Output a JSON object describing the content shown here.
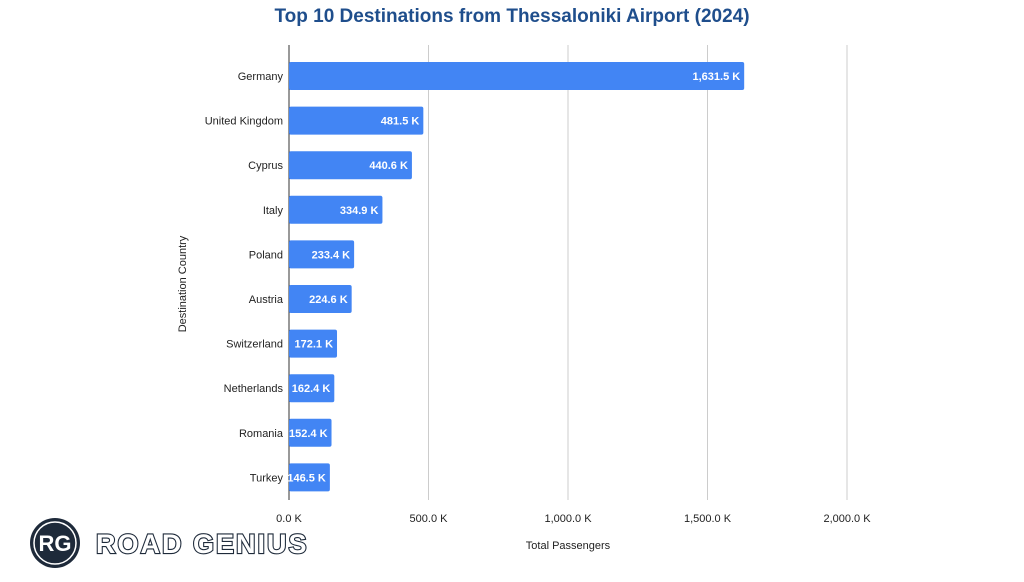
{
  "chart_data": {
    "type": "bar",
    "orientation": "horizontal",
    "title": "Top 10 Destinations from Thessaloniki Airport (2024)",
    "xlabel": "Total Passengers",
    "ylabel": "Destination Country",
    "xlim": [
      0,
      2000
    ],
    "xticks": [
      0,
      500,
      1000,
      1500,
      2000
    ],
    "xtick_labels": [
      "0.0 K",
      "500.0 K",
      "1,000.0 K",
      "1,500.0 K",
      "2,000.0 K"
    ],
    "categories": [
      "Germany",
      "United Kingdom",
      "Cyprus",
      "Italy",
      "Poland",
      "Austria",
      "Switzerland",
      "Netherlands",
      "Romania",
      "Turkey"
    ],
    "values": [
      1631.5,
      481.5,
      440.6,
      334.9,
      233.4,
      224.6,
      172.1,
      162.4,
      152.4,
      146.5
    ],
    "value_labels": [
      "1,631.5 K",
      "481.5 K",
      "440.6 K",
      "334.9 K",
      "233.4 K",
      "224.6 K",
      "172.1 K",
      "162.4 K",
      "152.4 K",
      "146.5 K"
    ],
    "grid": true,
    "bar_color": "#4285f4"
  },
  "logo": {
    "badge": "RG",
    "text": "ROAD GENIUS"
  },
  "colors": {
    "title": "#1f4e8c",
    "logo_dark": "#1e2a3a"
  }
}
